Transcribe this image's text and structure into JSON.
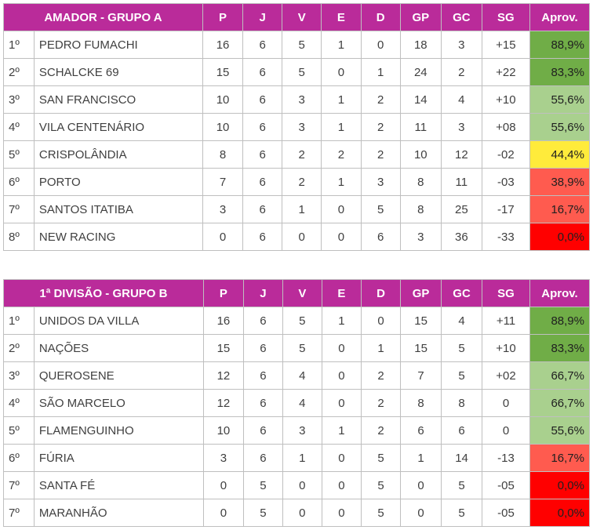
{
  "tables": [
    {
      "title": "AMADOR - GRUPO A",
      "headers": [
        "P",
        "J",
        "V",
        "E",
        "D",
        "GP",
        "GC",
        "SG",
        "Aprov."
      ],
      "rows": [
        {
          "pos": "1º",
          "team": "PEDRO FUMACHI",
          "P": "16",
          "J": "6",
          "V": "5",
          "E": "1",
          "D": "0",
          "GP": "18",
          "GC": "3",
          "SG": "+15",
          "aprov": "88,9%",
          "aprov_bg": "#70ad47"
        },
        {
          "pos": "2º",
          "team": "SCHALCKE 69",
          "P": "15",
          "J": "6",
          "V": "5",
          "E": "0",
          "D": "1",
          "GP": "24",
          "GC": "2",
          "SG": "+22",
          "aprov": "83,3%",
          "aprov_bg": "#70ad47"
        },
        {
          "pos": "3º",
          "team": "SAN FRANCISCO",
          "P": "10",
          "J": "6",
          "V": "3",
          "E": "1",
          "D": "2",
          "GP": "14",
          "GC": "4",
          "SG": "+10",
          "aprov": "55,6%",
          "aprov_bg": "#a9d08e"
        },
        {
          "pos": "4º",
          "team": "VILA CENTENÁRIO",
          "P": "10",
          "J": "6",
          "V": "3",
          "E": "1",
          "D": "2",
          "GP": "11",
          "GC": "3",
          "SG": "+08",
          "aprov": "55,6%",
          "aprov_bg": "#a9d08e"
        },
        {
          "pos": "5º",
          "team": "CRISPOLÂNDIA",
          "P": "8",
          "J": "6",
          "V": "2",
          "E": "2",
          "D": "2",
          "GP": "10",
          "GC": "12",
          "SG": "-02",
          "aprov": "44,4%",
          "aprov_bg": "#ffeb3b"
        },
        {
          "pos": "6º",
          "team": "PORTO",
          "P": "7",
          "J": "6",
          "V": "2",
          "E": "1",
          "D": "3",
          "GP": "8",
          "GC": "11",
          "SG": "-03",
          "aprov": "38,9%",
          "aprov_bg": "#ff5b4f"
        },
        {
          "pos": "7º",
          "team": "SANTOS ITATIBA",
          "P": "3",
          "J": "6",
          "V": "1",
          "E": "0",
          "D": "5",
          "GP": "8",
          "GC": "25",
          "SG": "-17",
          "aprov": "16,7%",
          "aprov_bg": "#ff5b4f"
        },
        {
          "pos": "8º",
          "team": "NEW RACING",
          "P": "0",
          "J": "6",
          "V": "0",
          "E": "0",
          "D": "6",
          "GP": "3",
          "GC": "36",
          "SG": "-33",
          "aprov": "0,0%",
          "aprov_bg": "#ff0000"
        }
      ]
    },
    {
      "title": "1ª DIVISÃO - GRUPO B",
      "headers": [
        "P",
        "J",
        "V",
        "E",
        "D",
        "GP",
        "GC",
        "SG",
        "Aprov."
      ],
      "rows": [
        {
          "pos": "1º",
          "team": "UNIDOS DA VILLA",
          "P": "16",
          "J": "6",
          "V": "5",
          "E": "1",
          "D": "0",
          "GP": "15",
          "GC": "4",
          "SG": "+11",
          "aprov": "88,9%",
          "aprov_bg": "#70ad47"
        },
        {
          "pos": "2º",
          "team": "NAÇÕES",
          "P": "15",
          "J": "6",
          "V": "5",
          "E": "0",
          "D": "1",
          "GP": "15",
          "GC": "5",
          "SG": "+10",
          "aprov": "83,3%",
          "aprov_bg": "#70ad47"
        },
        {
          "pos": "3º",
          "team": "QUEROSENE",
          "P": "12",
          "J": "6",
          "V": "4",
          "E": "0",
          "D": "2",
          "GP": "7",
          "GC": "5",
          "SG": "+02",
          "aprov": "66,7%",
          "aprov_bg": "#a9d08e"
        },
        {
          "pos": "4º",
          "team": "SÃO MARCELO",
          "P": "12",
          "J": "6",
          "V": "4",
          "E": "0",
          "D": "2",
          "GP": "8",
          "GC": "8",
          "SG": "0",
          "aprov": "66,7%",
          "aprov_bg": "#a9d08e"
        },
        {
          "pos": "5º",
          "team": "FLAMENGUINHO",
          "P": "10",
          "J": "6",
          "V": "3",
          "E": "1",
          "D": "2",
          "GP": "6",
          "GC": "6",
          "SG": "0",
          "aprov": "55,6%",
          "aprov_bg": "#a9d08e"
        },
        {
          "pos": "6º",
          "team": "FÚRIA",
          "P": "3",
          "J": "6",
          "V": "1",
          "E": "0",
          "D": "5",
          "GP": "1",
          "GC": "14",
          "SG": "-13",
          "aprov": "16,7%",
          "aprov_bg": "#ff5b4f"
        },
        {
          "pos": "7º",
          "team": "SANTA FÉ",
          "P": "0",
          "J": "5",
          "V": "0",
          "E": "0",
          "D": "5",
          "GP": "0",
          "GC": "5",
          "SG": "-05",
          "aprov": "0,0%",
          "aprov_bg": "#ff0000"
        },
        {
          "pos": "7º",
          "team": "MARANHÃO",
          "P": "0",
          "J": "5",
          "V": "0",
          "E": "0",
          "D": "5",
          "GP": "0",
          "GC": "5",
          "SG": "-05",
          "aprov": "0,0%",
          "aprov_bg": "#ff0000"
        }
      ]
    }
  ],
  "colors": {
    "header_bg": "#ba2b9a",
    "header_text": "#ffffff",
    "border": "#bfbfbf",
    "text": "#404040"
  }
}
